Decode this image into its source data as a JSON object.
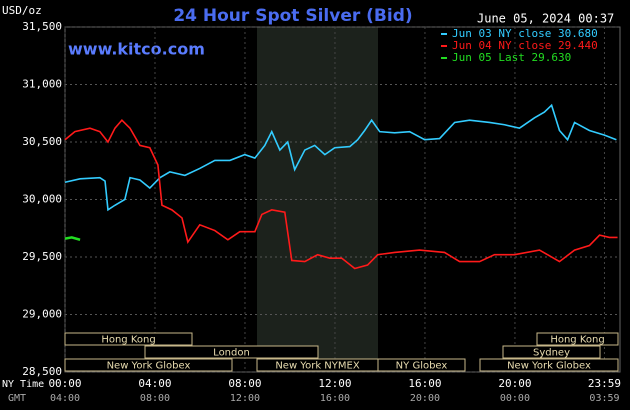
{
  "chart_data": {
    "type": "line",
    "title": "24 Hour Spot Silver (Bid)",
    "source": "www.kitco.com",
    "timestamp": "June 05, 2024 00:37",
    "y_label": "USD/oz",
    "x_label": "NY Time",
    "x2_label": "GMT",
    "xlim": [
      0,
      24.67
    ],
    "ylim": [
      28.5,
      31.5
    ],
    "grid": true,
    "yticks": [
      {
        "value": 28.5,
        "label": "28,500"
      },
      {
        "value": 29,
        "label": "29,000"
      },
      {
        "value": 29.5,
        "label": "29,500"
      },
      {
        "value": 30,
        "label": "30,000"
      },
      {
        "value": 30.5,
        "label": "30,500"
      },
      {
        "value": 31,
        "label": "31,000"
      },
      {
        "value": 31.5,
        "label": "31,500"
      }
    ],
    "xticks": [
      {
        "value": 0,
        "label": "00:00"
      },
      {
        "value": 4,
        "label": "04:00"
      },
      {
        "value": 8,
        "label": "08:00"
      },
      {
        "value": 12,
        "label": "12:00"
      },
      {
        "value": 16,
        "label": "16:00"
      },
      {
        "value": 20,
        "label": "20:00"
      },
      {
        "value": 23.98,
        "label": "23:59"
      }
    ],
    "x2tick_labels": [
      "04:00",
      "08:00",
      "12:00",
      "16:00",
      "20:00",
      "00:00",
      "03:59"
    ],
    "sessions": [
      "Hong Kong",
      "London",
      "New York Globex",
      "New York NYMEX",
      "NY Globex",
      "Hong Kong",
      "Sydney",
      "New York Globex"
    ],
    "series": [
      {
        "name": "Jun 03 NY close 30.680",
        "color": "#33ccff",
        "x": [
          0,
          0.67,
          1.55,
          1.78,
          1.91,
          2.22,
          2.66,
          2.89,
          3.33,
          3.77,
          4.22,
          4.66,
          5.33,
          5.99,
          6.66,
          7.33,
          7.99,
          8.44,
          8.88,
          9.19,
          9.55,
          9.9,
          10.21,
          10.66,
          11.1,
          11.55,
          11.99,
          12.66,
          13.01,
          13.32,
          13.63,
          13.99,
          14.65,
          15.32,
          15.99,
          16.65,
          17.32,
          17.98,
          18.87,
          19.54,
          20.2,
          20.87,
          21.31,
          21.63,
          21.98,
          22.34,
          22.65,
          23.31,
          23.98,
          24.51
        ],
        "values": [
          30.15,
          30.18,
          30.19,
          30.16,
          29.91,
          29.95,
          30.0,
          30.19,
          30.17,
          30.1,
          30.19,
          30.24,
          30.21,
          30.27,
          30.34,
          30.34,
          30.39,
          30.36,
          30.47,
          30.59,
          30.43,
          30.5,
          30.26,
          30.43,
          30.47,
          30.39,
          30.45,
          30.46,
          30.52,
          30.6,
          30.69,
          30.59,
          30.58,
          30.59,
          30.52,
          30.53,
          30.67,
          30.69,
          30.67,
          30.65,
          30.62,
          30.71,
          30.76,
          30.82,
          30.6,
          30.52,
          30.67,
          30.6,
          30.56,
          30.52
        ]
      },
      {
        "name": "Jun 04 NY close 29.440",
        "color": "#ff1a1a",
        "x": [
          0,
          0.44,
          1.11,
          1.55,
          1.91,
          2.22,
          2.53,
          2.89,
          3.33,
          3.77,
          4.13,
          4.31,
          4.75,
          5.2,
          5.46,
          5.99,
          6.66,
          7.24,
          7.77,
          8.44,
          8.75,
          9.19,
          9.77,
          10.08,
          10.66,
          11.23,
          11.77,
          12.3,
          12.88,
          13.45,
          13.9,
          14.65,
          15.76,
          16.87,
          17.54,
          18.43,
          19.09,
          19.98,
          21.09,
          21.45,
          21.98,
          22.65,
          23.31,
          23.76,
          24.2,
          24.56
        ],
        "values": [
          30.52,
          30.59,
          30.62,
          30.59,
          30.5,
          30.62,
          30.69,
          30.62,
          30.47,
          30.45,
          30.3,
          29.95,
          29.91,
          29.84,
          29.63,
          29.78,
          29.73,
          29.65,
          29.72,
          29.72,
          29.87,
          29.91,
          29.89,
          29.47,
          29.46,
          29.52,
          29.49,
          29.49,
          29.4,
          29.43,
          29.52,
          29.54,
          29.56,
          29.54,
          29.46,
          29.46,
          29.52,
          29.52,
          29.56,
          29.52,
          29.46,
          29.56,
          29.6,
          29.69,
          29.67,
          29.67
        ]
      },
      {
        "name": "Jun 05 Last 29.630",
        "color": "#22dd22",
        "x": [
          0,
          0.3,
          0.67
        ],
        "values": [
          29.66,
          29.67,
          29.65
        ]
      }
    ]
  }
}
